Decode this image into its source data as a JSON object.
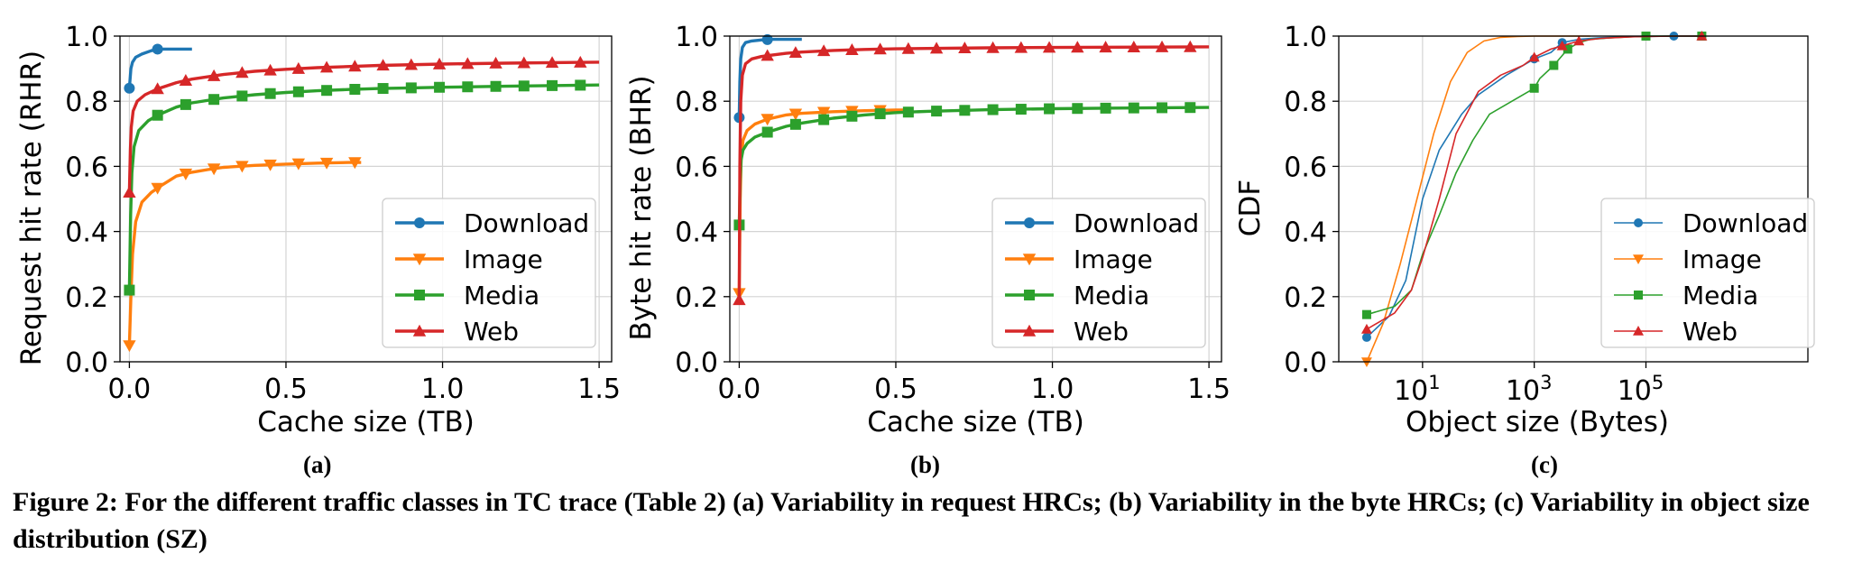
{
  "legend_entries": [
    "Download",
    "Image",
    "Media",
    "Web"
  ],
  "colors": {
    "Download": "#1f77b4",
    "Image": "#ff7f0e",
    "Media": "#2ca02c",
    "Web": "#d62728",
    "grid": "#d4d4d4",
    "axis": "#000000"
  },
  "subfig_labels": [
    "(a)",
    "(b)",
    "(c)"
  ],
  "caption": "Figure 2: For the different traffic classes in TC trace (Table 2) (a) Variability in request HRCs; (b) Variability in the byte HRCs; (c) Variability in object size distribution (SZ)",
  "chart_data": [
    {
      "type": "line",
      "xlabel": "Cache size (TB)",
      "ylabel": "Request hit rate (RHR)",
      "xlim": [
        -0.03,
        1.54
      ],
      "ylim": [
        0,
        1
      ],
      "xticks": [
        0.0,
        0.5,
        1.0,
        1.5
      ],
      "xtick_labels": [
        "0.0",
        "0.5",
        "1.0",
        "1.5"
      ],
      "yticks": [
        0,
        0.2,
        0.4,
        0.6,
        0.8,
        1.0
      ],
      "ytick_labels": [
        "0.0",
        "0.2",
        "0.4",
        "0.6",
        "0.8",
        "1.0"
      ],
      "grid": true,
      "legend_position": "lower-right",
      "series": [
        {
          "name": "Download",
          "marker": "circle",
          "x": [
            0,
            0.005,
            0.01,
            0.02,
            0.04,
            0.07,
            0.09,
            0.12,
            0.15,
            0.2
          ],
          "y": [
            0.84,
            0.9,
            0.92,
            0.935,
            0.945,
            0.955,
            0.96,
            0.96,
            0.96,
            0.96
          ],
          "marker_x": [
            0.0,
            0.09
          ]
        },
        {
          "name": "Image",
          "marker": "triangle-down",
          "x": [
            0,
            0.005,
            0.01,
            0.02,
            0.04,
            0.07,
            0.1,
            0.15,
            0.2,
            0.25,
            0.3,
            0.4,
            0.5,
            0.6,
            0.7,
            0.74
          ],
          "y": [
            0.05,
            0.2,
            0.33,
            0.43,
            0.49,
            0.52,
            0.54,
            0.57,
            0.582,
            0.59,
            0.597,
            0.603,
            0.607,
            0.61,
            0.612,
            0.612
          ],
          "marker_x": [
            0.0,
            0.09,
            0.18,
            0.27,
            0.36,
            0.45,
            0.54,
            0.63,
            0.72
          ]
        },
        {
          "name": "Media",
          "marker": "square",
          "x": [
            0,
            0.004,
            0.008,
            0.015,
            0.03,
            0.06,
            0.09,
            0.15,
            0.2,
            0.3,
            0.4,
            0.5,
            0.6,
            0.7,
            0.8,
            0.9,
            1.0,
            1.2,
            1.5
          ],
          "y": [
            0.22,
            0.45,
            0.58,
            0.66,
            0.71,
            0.74,
            0.757,
            0.782,
            0.795,
            0.81,
            0.82,
            0.827,
            0.832,
            0.836,
            0.839,
            0.841,
            0.843,
            0.846,
            0.85
          ],
          "marker_x": [
            0.0,
            0.09,
            0.18,
            0.27,
            0.36,
            0.45,
            0.54,
            0.63,
            0.72,
            0.81,
            0.9,
            0.99,
            1.08,
            1.17,
            1.26,
            1.35,
            1.44
          ]
        },
        {
          "name": "Web",
          "marker": "triangle-up",
          "x": [
            0,
            0.003,
            0.006,
            0.012,
            0.025,
            0.05,
            0.09,
            0.15,
            0.2,
            0.3,
            0.4,
            0.5,
            0.6,
            0.8,
            1.0,
            1.2,
            1.5
          ],
          "y": [
            0.52,
            0.65,
            0.72,
            0.77,
            0.8,
            0.82,
            0.838,
            0.857,
            0.868,
            0.882,
            0.892,
            0.898,
            0.903,
            0.91,
            0.914,
            0.917,
            0.92
          ],
          "marker_x": [
            0.0,
            0.09,
            0.18,
            0.27,
            0.36,
            0.45,
            0.54,
            0.63,
            0.72,
            0.81,
            0.9,
            0.99,
            1.08,
            1.17,
            1.26,
            1.35,
            1.44
          ]
        }
      ]
    },
    {
      "type": "line",
      "xlabel": "Cache size (TB)",
      "ylabel": "Byte hit rate (BHR)",
      "xlim": [
        -0.03,
        1.54
      ],
      "ylim": [
        0,
        1
      ],
      "xticks": [
        0.0,
        0.5,
        1.0,
        1.5
      ],
      "xtick_labels": [
        "0.0",
        "0.5",
        "1.0",
        "1.5"
      ],
      "yticks": [
        0,
        0.2,
        0.4,
        0.6,
        0.8,
        1.0
      ],
      "ytick_labels": [
        "0.0",
        "0.2",
        "0.4",
        "0.6",
        "0.8",
        "1.0"
      ],
      "grid": true,
      "legend_position": "lower-right",
      "series": [
        {
          "name": "Download",
          "marker": "circle",
          "x": [
            0,
            0.002,
            0.005,
            0.01,
            0.02,
            0.04,
            0.07,
            0.1,
            0.15,
            0.2
          ],
          "y": [
            0.75,
            0.86,
            0.93,
            0.965,
            0.98,
            0.985,
            0.988,
            0.99,
            0.99,
            0.99
          ],
          "marker_x": [
            0.0,
            0.09
          ]
        },
        {
          "name": "Image",
          "marker": "triangle-down",
          "x": [
            0,
            0.003,
            0.006,
            0.012,
            0.025,
            0.05,
            0.09,
            0.15,
            0.2,
            0.3,
            0.4,
            0.5,
            0.55
          ],
          "y": [
            0.21,
            0.5,
            0.62,
            0.68,
            0.71,
            0.73,
            0.745,
            0.758,
            0.763,
            0.768,
            0.771,
            0.773,
            0.773
          ],
          "marker_x": [
            0.0,
            0.09,
            0.18,
            0.27,
            0.36,
            0.45
          ]
        },
        {
          "name": "Media",
          "marker": "square",
          "x": [
            0,
            0.003,
            0.006,
            0.012,
            0.025,
            0.05,
            0.09,
            0.15,
            0.2,
            0.3,
            0.4,
            0.5,
            0.6,
            0.8,
            1.0,
            1.2,
            1.5
          ],
          "y": [
            0.42,
            0.56,
            0.62,
            0.65,
            0.67,
            0.69,
            0.705,
            0.723,
            0.733,
            0.748,
            0.758,
            0.765,
            0.769,
            0.774,
            0.777,
            0.779,
            0.781
          ],
          "marker_x": [
            0.0,
            0.09,
            0.18,
            0.27,
            0.36,
            0.45,
            0.54,
            0.63,
            0.72,
            0.81,
            0.9,
            0.99,
            1.08,
            1.17,
            1.26,
            1.35,
            1.44
          ]
        },
        {
          "name": "Web",
          "marker": "triangle-up",
          "x": [
            0,
            0.002,
            0.005,
            0.01,
            0.02,
            0.04,
            0.07,
            0.09,
            0.15,
            0.2,
            0.3,
            0.4,
            0.5,
            0.6,
            0.8,
            1.0,
            1.2,
            1.5
          ],
          "y": [
            0.19,
            0.6,
            0.8,
            0.88,
            0.915,
            0.93,
            0.937,
            0.94,
            0.947,
            0.951,
            0.956,
            0.959,
            0.961,
            0.962,
            0.964,
            0.965,
            0.966,
            0.967
          ],
          "marker_x": [
            0.0,
            0.09,
            0.18,
            0.27,
            0.36,
            0.45,
            0.54,
            0.63,
            0.72,
            0.81,
            0.9,
            0.99,
            1.08,
            1.17,
            1.26,
            1.35,
            1.44
          ]
        }
      ]
    },
    {
      "type": "line",
      "xlabel": "Object size (Bytes)",
      "ylabel": "CDF",
      "xscale": "log",
      "xlim_log10": [
        -0.5,
        7.9
      ],
      "ylim": [
        0,
        1
      ],
      "xticks_log10": [
        1,
        3,
        5
      ],
      "xtick_base": "10",
      "xtick_exponents": [
        "1",
        "3",
        "5"
      ],
      "yticks": [
        0,
        0.2,
        0.4,
        0.6,
        0.8,
        1.0
      ],
      "ytick_labels": [
        "0.0",
        "0.2",
        "0.4",
        "0.6",
        "0.8",
        "1.0"
      ],
      "grid": true,
      "legend_position": "lower-right",
      "series": [
        {
          "name": "Download",
          "marker": "circle",
          "log10_x": [
            0,
            0.4,
            0.7,
            1.0,
            1.3,
            1.7,
            2.0,
            2.5,
            3.0,
            3.3,
            3.5,
            3.8,
            4.2,
            4.7,
            5.5,
            6.0
          ],
          "y": [
            0.075,
            0.14,
            0.25,
            0.5,
            0.65,
            0.76,
            0.82,
            0.88,
            0.93,
            0.95,
            0.98,
            0.99,
            0.995,
            0.998,
            1.0,
            1.0
          ],
          "marker_log10_x": [
            0,
            3.0,
            3.5,
            5.5
          ]
        },
        {
          "name": "Image",
          "marker": "triangle-down",
          "log10_x": [
            0,
            0.3,
            0.6,
            0.9,
            1.2,
            1.5,
            1.8,
            2.1,
            2.4,
            2.7,
            3.0,
            3.5,
            4.0
          ],
          "y": [
            0.0,
            0.12,
            0.3,
            0.5,
            0.7,
            0.86,
            0.95,
            0.985,
            0.996,
            0.999,
            1.0,
            1.0,
            1.0
          ],
          "marker_log10_x": [
            0
          ]
        },
        {
          "name": "Media",
          "marker": "square",
          "log10_x": [
            0,
            0.5,
            0.8,
            1.0,
            1.3,
            1.6,
            1.9,
            2.2,
            2.6,
            3.0,
            3.1,
            3.35,
            3.6,
            3.8,
            4.0,
            4.4,
            5.0,
            6.0
          ],
          "y": [
            0.145,
            0.17,
            0.22,
            0.33,
            0.45,
            0.58,
            0.68,
            0.76,
            0.8,
            0.84,
            0.87,
            0.91,
            0.96,
            0.98,
            0.99,
            0.995,
            1.0,
            1.0
          ],
          "marker_log10_x": [
            0,
            3.0,
            3.35,
            3.6,
            5.0,
            6.0
          ]
        },
        {
          "name": "Web",
          "marker": "triangle-up",
          "log10_x": [
            0,
            0.5,
            0.8,
            1.0,
            1.3,
            1.6,
            2.0,
            2.4,
            2.8,
            3.0,
            3.3,
            3.5,
            3.8,
            4.2,
            4.8,
            5.5,
            6.0
          ],
          "y": [
            0.1,
            0.15,
            0.22,
            0.32,
            0.5,
            0.7,
            0.83,
            0.88,
            0.91,
            0.935,
            0.96,
            0.97,
            0.985,
            0.993,
            0.998,
            1.0,
            1.0
          ],
          "marker_log10_x": [
            0,
            3.0,
            3.5,
            3.8,
            6.0
          ]
        }
      ]
    }
  ]
}
